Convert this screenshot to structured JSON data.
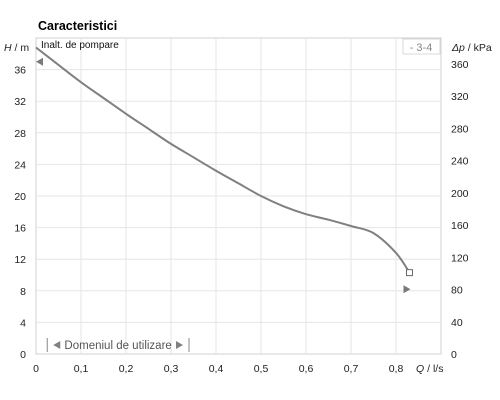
{
  "colors": {
    "grid": "#e6e6e6",
    "frame": "#d0d0d0",
    "curve": "#808080",
    "marker": "#7a7a7a",
    "range_text": "#555555"
  },
  "chart_data": {
    "type": "line",
    "title": "Caracteristici",
    "subtitle": "Inalt. de pompare",
    "curve_id": "- 3-4",
    "xlabel": {
      "symbol": "Q",
      "unit": "l/s"
    },
    "ylabel_left": {
      "symbol": "H",
      "unit": "m"
    },
    "ylabel_right": {
      "symbol": "Δp",
      "unit": "kPa"
    },
    "xlim": [
      0,
      0.9
    ],
    "ylim_left": [
      0,
      40
    ],
    "ylim_right": [
      0,
      392
    ],
    "x_ticks": [
      "0",
      "0,1",
      "0,2",
      "0,3",
      "0,4",
      "0,5",
      "0,6",
      "0,7",
      "0,8"
    ],
    "y_ticks_left": [
      "0",
      "4",
      "8",
      "12",
      "16",
      "20",
      "24",
      "28",
      "32",
      "36"
    ],
    "y_ticks_right": [
      "0",
      "40",
      "80",
      "120",
      "160",
      "200",
      "240",
      "280",
      "320",
      "360"
    ],
    "grid": true,
    "series": [
      {
        "x": [
          0,
          0.05,
          0.1,
          0.15,
          0.2,
          0.25,
          0.3,
          0.35,
          0.4,
          0.45,
          0.5,
          0.55,
          0.6,
          0.65,
          0.7,
          0.75,
          0.8,
          0.83
        ],
        "y": [
          38.8,
          36.6,
          34.4,
          32.4,
          30.4,
          28.5,
          26.6,
          24.9,
          23.2,
          21.6,
          20.0,
          18.7,
          17.7,
          17.0,
          16.2,
          15.3,
          12.8,
          10.3
        ]
      }
    ],
    "markers": {
      "left_arrow_y": 37.0,
      "right_arrow_y": 8.2,
      "end_square_x": 0.83,
      "end_square_y": 10.3
    },
    "operating_range": {
      "label": "Domeniul de utilizare",
      "x_start": 0.025,
      "x_end": 0.34
    }
  }
}
